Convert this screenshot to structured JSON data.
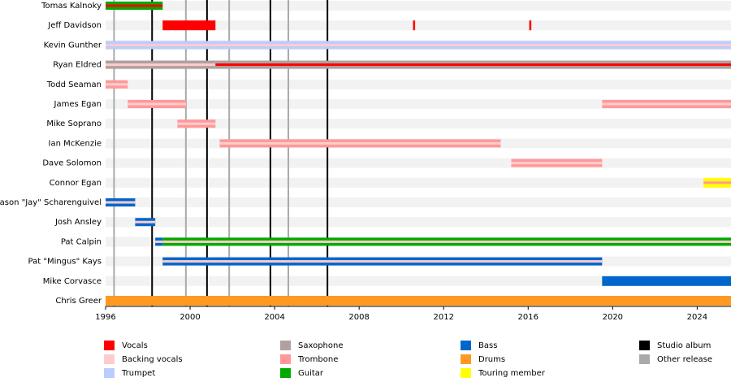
{
  "chart_data": {
    "type": "timeline",
    "xlim": [
      1996,
      2025.6
    ],
    "xticks": [
      1996,
      2000,
      2004,
      2008,
      2012,
      2016,
      2020,
      2024
    ],
    "studio_albums": [
      1998.2,
      2000.8,
      2003.8,
      2006.5
    ],
    "other_releases": [
      1996.4,
      1999.8,
      2001.85,
      2004.65
    ],
    "legend": [
      {
        "name": "Vocals",
        "color": "#ff0000"
      },
      {
        "name": "Backing vocals",
        "color": "#ffcccc"
      },
      {
        "name": "Trumpet",
        "color": "#bbccff"
      },
      {
        "name": "Saxophone",
        "color": "#b0a0a0"
      },
      {
        "name": "Trombone",
        "color": "#ff9999"
      },
      {
        "name": "Guitar",
        "color": "#00aa00"
      },
      {
        "name": "Bass",
        "color": "#0066cc"
      },
      {
        "name": "Drums",
        "color": "#ff9922"
      },
      {
        "name": "Touring member",
        "color": "#ffff00"
      },
      {
        "name": "Studio album",
        "color": "#000000"
      },
      {
        "name": "Other release",
        "color": "#aaaaaa"
      }
    ],
    "members": [
      {
        "name": "Tomas Kalnoky",
        "bars": [
          {
            "start": 1996,
            "end": 1998.7,
            "role": "Guitar",
            "stripe": "Vocals"
          }
        ]
      },
      {
        "name": "Jeff Davidson",
        "bars": [
          {
            "start": 1998.7,
            "end": 2001.2,
            "role": "Vocals"
          },
          {
            "start": 2010.55,
            "end": 2010.65,
            "role": "Vocals"
          },
          {
            "start": 2016.05,
            "end": 2016.15,
            "role": "Vocals"
          }
        ]
      },
      {
        "name": "Kevin Gunther",
        "bars": [
          {
            "start": 1996,
            "end": 2025.6,
            "role": "Trumpet",
            "stripe": "Backing vocals"
          }
        ]
      },
      {
        "name": "Ryan Eldred",
        "bars": [
          {
            "start": 1996,
            "end": 2001.2,
            "role": "Saxophone",
            "stripe": "Backing vocals"
          },
          {
            "start": 2001.2,
            "end": 2025.6,
            "role": "Saxophone",
            "stripe": "Vocals"
          }
        ]
      },
      {
        "name": "Todd Seaman",
        "bars": [
          {
            "start": 1996,
            "end": 1997.05,
            "role": "Trombone",
            "stripe": "Backing vocals"
          }
        ]
      },
      {
        "name": "James Egan",
        "bars": [
          {
            "start": 1997.05,
            "end": 1999.8,
            "role": "Trombone",
            "stripe": "Backing vocals"
          },
          {
            "start": 2019.5,
            "end": 2025.6,
            "role": "Trombone",
            "stripe": "Backing vocals"
          }
        ]
      },
      {
        "name": "Mike Soprano",
        "bars": [
          {
            "start": 1999.4,
            "end": 2001.2,
            "role": "Trombone",
            "stripe": "Backing vocals"
          }
        ]
      },
      {
        "name": "Ian McKenzie",
        "bars": [
          {
            "start": 2001.4,
            "end": 2014.7,
            "role": "Trombone",
            "stripe": "Backing vocals"
          }
        ]
      },
      {
        "name": "Dave Solomon",
        "bars": [
          {
            "start": 2015.2,
            "end": 2019.5,
            "role": "Trombone",
            "stripe": "Backing vocals"
          }
        ]
      },
      {
        "name": "Connor Egan",
        "bars": [
          {
            "start": 2024.3,
            "end": 2025.6,
            "role": "Touring member",
            "stripe": "Trombone"
          }
        ]
      },
      {
        "name": "Jason \"Jay\" Scharenguivel",
        "bars": [
          {
            "start": 1996,
            "end": 1997.4,
            "role": "Bass",
            "stripe": "Backing vocals"
          }
        ]
      },
      {
        "name": "Josh Ansley",
        "bars": [
          {
            "start": 1997.4,
            "end": 1998.35,
            "role": "Bass",
            "stripe": "Backing vocals"
          }
        ]
      },
      {
        "name": "Pat Calpin",
        "bars": [
          {
            "start": 1998.35,
            "end": 1998.7,
            "role": "Bass",
            "stripe": "Backing vocals"
          },
          {
            "start": 1998.7,
            "end": 2025.6,
            "role": "Guitar",
            "stripe": "Backing vocals"
          }
        ]
      },
      {
        "name": "Pat \"Mingus\" Kays",
        "bars": [
          {
            "start": 1998.7,
            "end": 2019.5,
            "role": "Bass",
            "stripe": "Backing vocals"
          }
        ]
      },
      {
        "name": "Mike Corvasce",
        "bars": [
          {
            "start": 2019.5,
            "end": 2025.6,
            "role": "Bass"
          }
        ]
      },
      {
        "name": "Chris Greer",
        "bars": [
          {
            "start": 1996,
            "end": 2025.6,
            "role": "Drums"
          }
        ]
      }
    ]
  }
}
